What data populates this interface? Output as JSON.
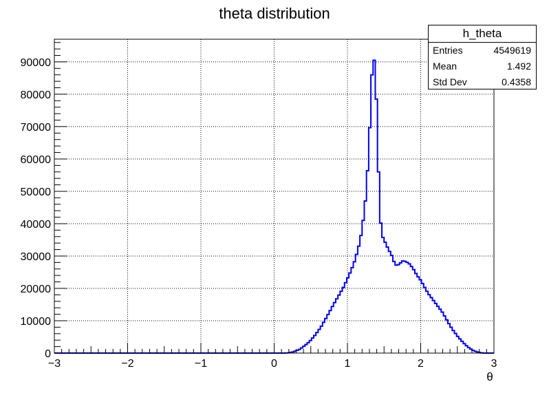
{
  "chart_data": {
    "type": "histogram",
    "title": "theta distribution",
    "xlabel": "θ",
    "ylabel": "",
    "xlim": [
      -3,
      3
    ],
    "ylim": [
      0,
      97000
    ],
    "grid": true,
    "x_ticks": [
      -3,
      -2,
      -1,
      0,
      1,
      2,
      3
    ],
    "x_tick_labels": [
      "−3",
      "−2",
      "−1",
      "0",
      "1",
      "2",
      "3"
    ],
    "y_ticks": [
      0,
      10000,
      20000,
      30000,
      40000,
      50000,
      60000,
      70000,
      80000,
      90000
    ],
    "y_tick_labels": [
      "0",
      "10000",
      "20000",
      "30000",
      "40000",
      "50000",
      "60000",
      "70000",
      "80000",
      "90000"
    ],
    "series": [
      {
        "color": "#0000ee",
        "points": [
          [
            -3.0,
            0
          ],
          [
            0.15,
            0
          ],
          [
            0.2,
            100
          ],
          [
            0.25,
            300
          ],
          [
            0.3,
            700
          ],
          [
            0.35,
            1200
          ],
          [
            0.4,
            2000
          ],
          [
            0.45,
            2900
          ],
          [
            0.5,
            4000
          ],
          [
            0.55,
            5300
          ],
          [
            0.6,
            6800
          ],
          [
            0.65,
            8500
          ],
          [
            0.7,
            10500
          ],
          [
            0.75,
            12500
          ],
          [
            0.8,
            14600
          ],
          [
            0.85,
            16600
          ],
          [
            0.9,
            18500
          ],
          [
            0.95,
            20500
          ],
          [
            1.0,
            23000
          ],
          [
            1.05,
            25500
          ],
          [
            1.1,
            28500
          ],
          [
            1.15,
            32500
          ],
          [
            1.2,
            38000
          ],
          [
            1.25,
            48000
          ],
          [
            1.28,
            58000
          ],
          [
            1.31,
            72000
          ],
          [
            1.33,
            84000
          ],
          [
            1.35,
            92000
          ],
          [
            1.37,
            90000
          ],
          [
            1.39,
            82000
          ],
          [
            1.41,
            68000
          ],
          [
            1.43,
            52000
          ],
          [
            1.45,
            41000
          ],
          [
            1.48,
            36000
          ],
          [
            1.52,
            34000
          ],
          [
            1.56,
            32000
          ],
          [
            1.6,
            30500
          ],
          [
            1.64,
            28000
          ],
          [
            1.67,
            27000
          ],
          [
            1.71,
            27500
          ],
          [
            1.75,
            28500
          ],
          [
            1.8,
            28300
          ],
          [
            1.85,
            27500
          ],
          [
            1.9,
            26000
          ],
          [
            1.95,
            24000
          ],
          [
            2.0,
            22500
          ],
          [
            2.05,
            20500
          ],
          [
            2.1,
            18500
          ],
          [
            2.15,
            17000
          ],
          [
            2.2,
            15500
          ],
          [
            2.25,
            14000
          ],
          [
            2.3,
            12500
          ],
          [
            2.35,
            10500
          ],
          [
            2.4,
            8500
          ],
          [
            2.45,
            6800
          ],
          [
            2.5,
            5300
          ],
          [
            2.55,
            4000
          ],
          [
            2.6,
            2800
          ],
          [
            2.65,
            1800
          ],
          [
            2.7,
            1000
          ],
          [
            2.75,
            500
          ],
          [
            2.8,
            200
          ],
          [
            2.85,
            0
          ],
          [
            3.0,
            0
          ]
        ]
      }
    ]
  },
  "stats_box": {
    "title": "h_theta",
    "rows": [
      {
        "label": "Entries",
        "value": "4549619"
      },
      {
        "label": "Mean",
        "value": "1.492"
      },
      {
        "label": "Std Dev",
        "value": "0.4358"
      }
    ]
  }
}
